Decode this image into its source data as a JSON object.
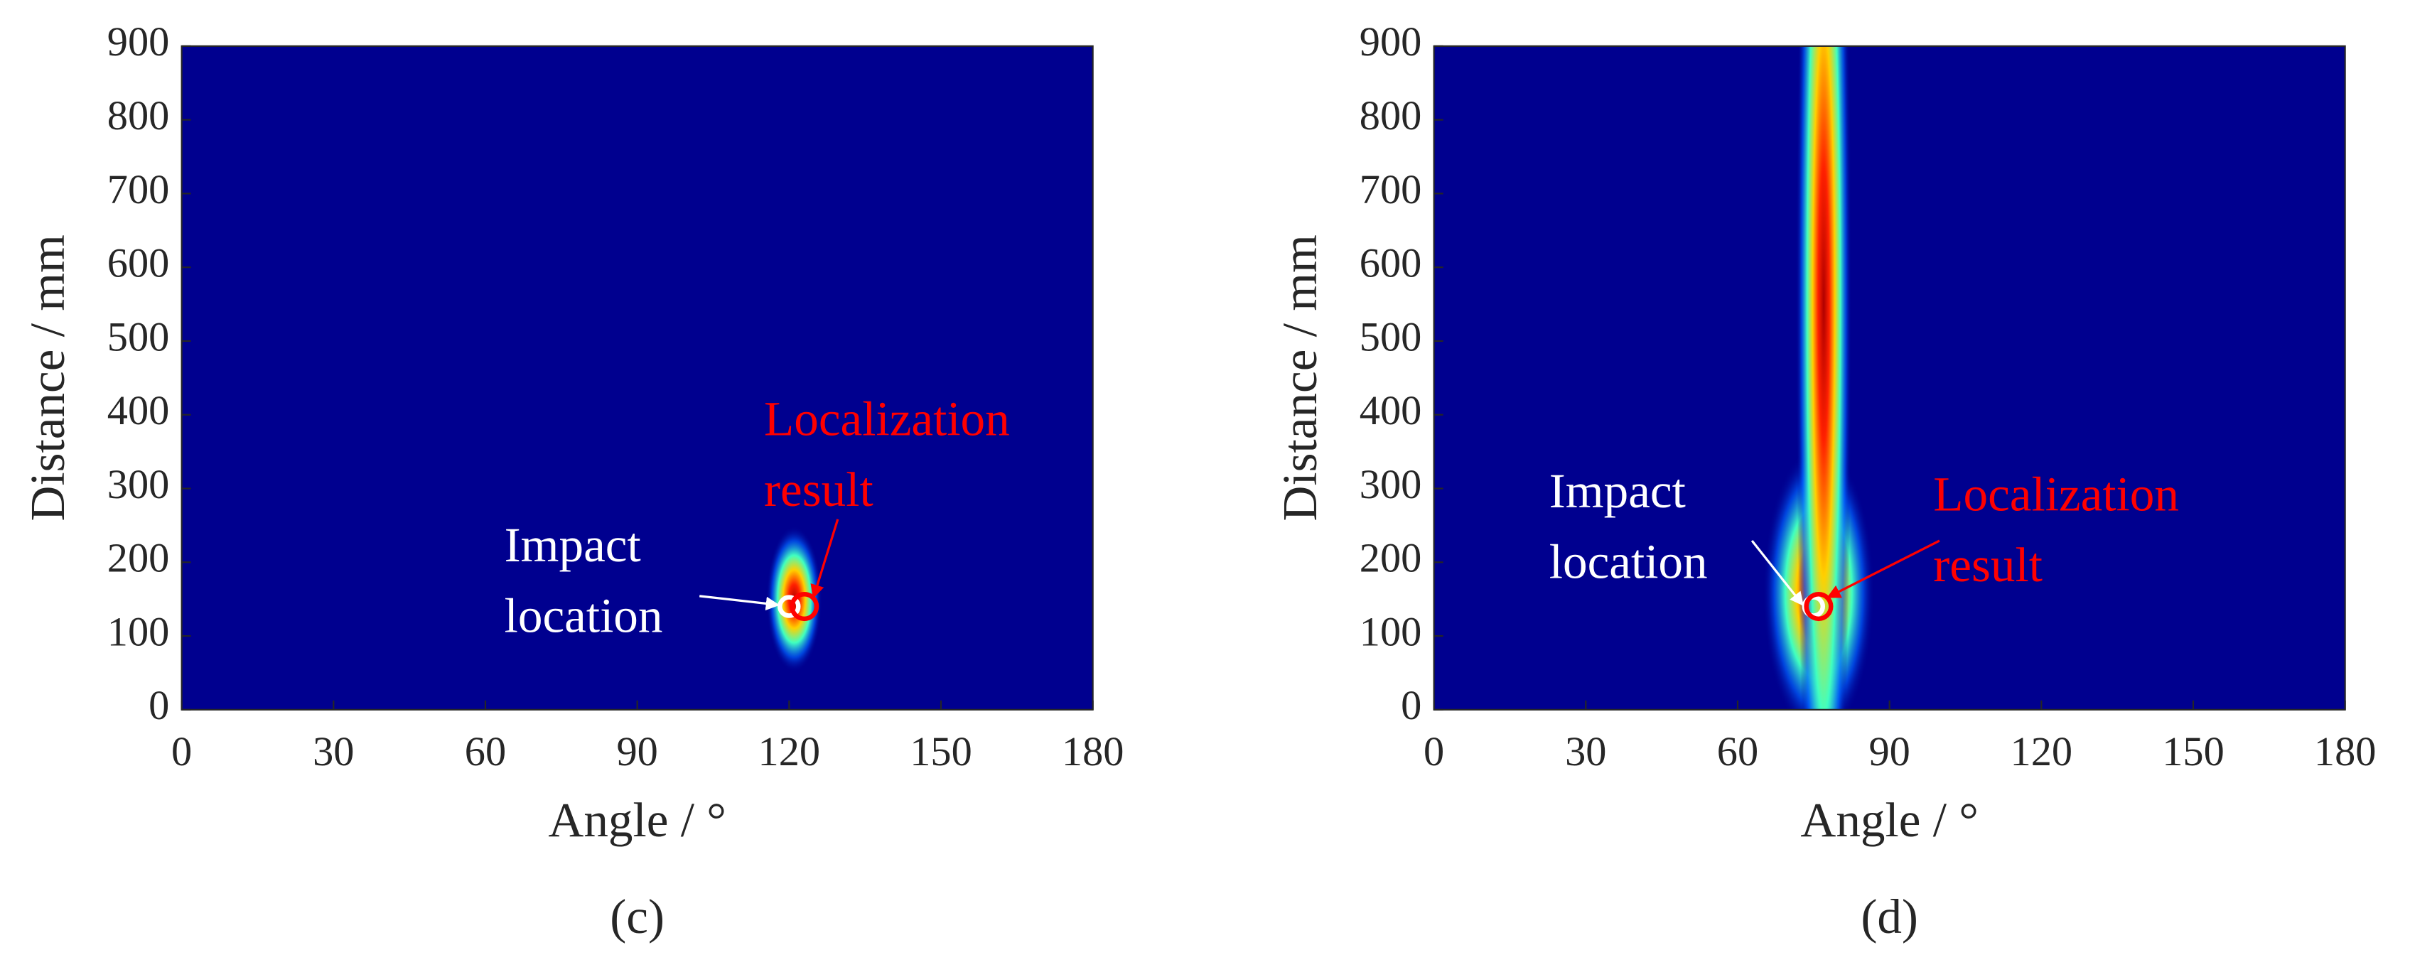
{
  "chart_data": [
    {
      "type": "heatmap",
      "caption": "(c)",
      "xlabel": "Angle / °",
      "ylabel": "Distance / mm",
      "background": "#00008f",
      "xlim": [
        0,
        180
      ],
      "xticks": [
        0,
        30,
        60,
        90,
        120,
        150,
        180
      ],
      "ylim": [
        0,
        900
      ],
      "yticks": [
        0,
        100,
        200,
        300,
        400,
        500,
        600,
        700,
        800,
        900
      ],
      "hotspots": [
        {
          "x": 121,
          "y": 150,
          "sx": 2.5,
          "sy": 45
        }
      ],
      "markers": [
        {
          "label": [
            "Impact",
            "location"
          ],
          "color": "#ffffff",
          "x": 120,
          "y": 140
        },
        {
          "label": [
            "Localization",
            "result"
          ],
          "color": "#ff0000",
          "x": 123,
          "y": 140
        }
      ]
    },
    {
      "type": "heatmap",
      "caption": "(d)",
      "xlabel": "Angle / °",
      "ylabel": "Distance / mm",
      "background": "#00008f",
      "xlim": [
        0,
        180
      ],
      "xticks": [
        0,
        30,
        60,
        90,
        120,
        150,
        180
      ],
      "ylim": [
        0,
        900
      ],
      "yticks": [
        0,
        100,
        200,
        300,
        400,
        500,
        600,
        700,
        800,
        900
      ],
      "hotspots": [
        {
          "x": 76,
          "y": 160,
          "sx": 5,
          "sy": 90
        },
        {
          "x": 77,
          "y": 550,
          "sx": 2.5,
          "sy": 420
        }
      ],
      "markers": [
        {
          "label": [
            "Impact",
            "location"
          ],
          "color": "#ffffff",
          "x": 75,
          "y": 140
        },
        {
          "label": [
            "Localization",
            "result"
          ],
          "color": "#ff0000",
          "x": 76,
          "y": 140
        }
      ]
    }
  ]
}
